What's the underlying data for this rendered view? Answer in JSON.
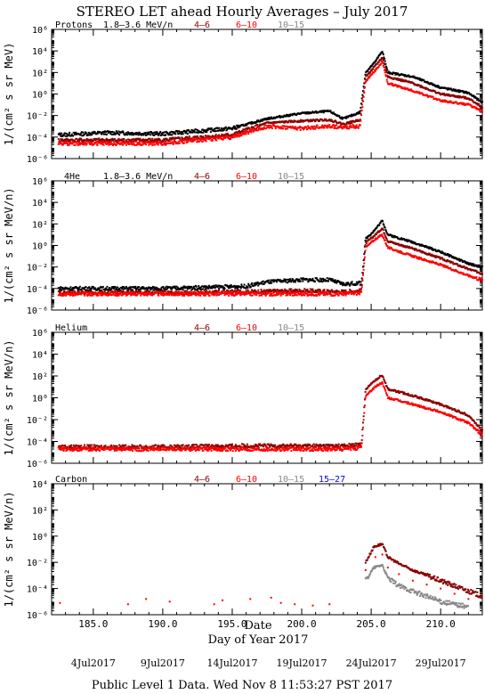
{
  "title": "STEREO LET ahead Hourly Averages – July 2017",
  "x_axis_label": "Day of Year 2017",
  "date_label": "Date",
  "footer": "Public Level 1 Data. Wed Nov  8 11:53:27 PST 2017",
  "x_ticks": [
    "185.0",
    "190.0",
    "195.0",
    "200.0",
    "205.0",
    "210.0"
  ],
  "date_ticks": [
    "4Jul2017",
    "9Jul2017",
    "14Jul2017",
    "19Jul2017",
    "24Jul2017",
    "29Jul2017"
  ],
  "colors": {
    "black": "#000000",
    "darkred": "#8b0000",
    "red": "#ff0000",
    "gray": "#888888",
    "blue": "#0000ff"
  },
  "chart_data": [
    {
      "type": "scatter",
      "species": "Protons",
      "ylabel": "1/(cm² s sr MeV)",
      "yscale": "log",
      "ylim_exp": [
        -6,
        6
      ],
      "y_ticks": [
        "10⁻⁶",
        "10⁻⁴",
        "10⁻²",
        "10⁰",
        "10²",
        "10⁴",
        "10⁶"
      ],
      "xlim": [
        182.0,
        213.0
      ],
      "legend": [
        {
          "label": "1.8–3.6 MeV/n",
          "color": "#000000"
        },
        {
          "label": "4–6",
          "color": "#8b0000"
        },
        {
          "label": "6–10",
          "color": "#ff0000"
        },
        {
          "label": "10–15",
          "color": "#888888"
        }
      ],
      "series": [
        {
          "name": "1.8–3.6 MeV/n",
          "color": "#000000",
          "points": [
            [
              182.5,
              -3.8
            ],
            [
              186,
              -3.6
            ],
            [
              190,
              -3.7
            ],
            [
              195,
              -3.2
            ],
            [
              197.5,
              -2.3
            ],
            [
              198,
              -2.2
            ],
            [
              200,
              -1.8
            ],
            [
              202,
              -1.6
            ],
            [
              203,
              -2.3
            ],
            [
              204.2,
              -1.7
            ],
            [
              204.6,
              2.0
            ],
            [
              205.3,
              3.0
            ],
            [
              205.8,
              4.0
            ],
            [
              206.2,
              2.0
            ],
            [
              208,
              1.6
            ],
            [
              210,
              0.6
            ],
            [
              212,
              0.1
            ],
            [
              213,
              -0.8
            ]
          ]
        },
        {
          "name": "4–6",
          "color": "#8b0000",
          "points": [
            [
              182.5,
              -4.3
            ],
            [
              190,
              -4.3
            ],
            [
              195,
              -3.8
            ],
            [
              197.5,
              -2.7
            ],
            [
              200,
              -2.5
            ],
            [
              202,
              -2.4
            ],
            [
              203,
              -2.8
            ],
            [
              204.2,
              -2.4
            ],
            [
              204.6,
              1.6
            ],
            [
              205.3,
              2.6
            ],
            [
              205.8,
              3.4
            ],
            [
              206.2,
              1.6
            ],
            [
              208,
              1.0
            ],
            [
              210,
              0.0
            ],
            [
              212,
              -0.4
            ],
            [
              213,
              -1.2
            ]
          ]
        },
        {
          "name": "6–10",
          "color": "#ff0000",
          "points": [
            [
              182.5,
              -4.6
            ],
            [
              190,
              -4.6
            ],
            [
              195,
              -4.0
            ],
            [
              197.5,
              -3.0
            ],
            [
              200,
              -3.2
            ],
            [
              202,
              -3.0
            ],
            [
              203,
              -3.1
            ],
            [
              204.2,
              -3.0
            ],
            [
              204.6,
              1.2
            ],
            [
              205.3,
              2.2
            ],
            [
              205.8,
              3.0
            ],
            [
              206.2,
              1.0
            ],
            [
              208,
              0.3
            ],
            [
              210,
              -0.6
            ],
            [
              212,
              -1.0
            ],
            [
              213,
              -1.6
            ]
          ]
        }
      ]
    },
    {
      "type": "scatter",
      "species": "4He",
      "ylabel": "1/(cm² s sr MeV/n)",
      "yscale": "log",
      "ylim_exp": [
        -6,
        6
      ],
      "y_ticks": [
        "10⁻⁶",
        "10⁻⁴",
        "10⁻²",
        "10⁰",
        "10²",
        "10⁴",
        "10⁶"
      ],
      "xlim": [
        182.0,
        213.0
      ],
      "legend": [
        {
          "label": "1.8–3.6 MeV/n",
          "color": "#000000"
        },
        {
          "label": "4–6",
          "color": "#8b0000"
        },
        {
          "label": "6–10",
          "color": "#ff0000"
        },
        {
          "label": "10–15",
          "color": "#888888"
        }
      ],
      "series": [
        {
          "name": "1.8–3.6 MeV/n",
          "color": "#000000",
          "points": [
            [
              182.5,
              -4.0
            ],
            [
              190,
              -4.0
            ],
            [
              196,
              -3.8
            ],
            [
              197.5,
              -3.4
            ],
            [
              200,
              -3.2
            ],
            [
              202,
              -3.2
            ],
            [
              203,
              -3.6
            ],
            [
              204.3,
              -3.5
            ],
            [
              204.6,
              0.6
            ],
            [
              205.3,
              1.5
            ],
            [
              205.8,
              2.3
            ],
            [
              206.2,
              1.0
            ],
            [
              208,
              0.3
            ],
            [
              210,
              -0.6
            ],
            [
              212,
              -1.7
            ],
            [
              213,
              -2.0
            ]
          ]
        },
        {
          "name": "4–6",
          "color": "#8b0000",
          "points": [
            [
              182.5,
              -4.4
            ],
            [
              190,
              -4.4
            ],
            [
              196,
              -4.3
            ],
            [
              200,
              -4.2
            ],
            [
              203,
              -4.3
            ],
            [
              204.3,
              -4.2
            ],
            [
              204.6,
              0.2
            ],
            [
              205.3,
              1.0
            ],
            [
              205.8,
              1.6
            ],
            [
              206.2,
              0.4
            ],
            [
              208,
              -0.3
            ],
            [
              210,
              -1.2
            ],
            [
              212,
              -2.2
            ],
            [
              213,
              -2.6
            ]
          ]
        },
        {
          "name": "6–10",
          "color": "#ff0000",
          "points": [
            [
              182.5,
              -4.5
            ],
            [
              190,
              -4.5
            ],
            [
              196,
              -4.5
            ],
            [
              200,
              -4.5
            ],
            [
              203,
              -4.5
            ],
            [
              204.3,
              -4.4
            ],
            [
              204.6,
              -0.2
            ],
            [
              205.3,
              0.6
            ],
            [
              205.8,
              1.0
            ],
            [
              206.2,
              -0.2
            ],
            [
              208,
              -1.0
            ],
            [
              210,
              -1.8
            ],
            [
              212,
              -2.8
            ],
            [
              213,
              -3.2
            ]
          ]
        }
      ]
    },
    {
      "type": "scatter",
      "species": "Helium",
      "ylabel": "1/(cm² s sr MeV/n)",
      "yscale": "log",
      "ylim_exp": [
        -6,
        6
      ],
      "y_ticks": [
        "10⁻⁶",
        "10⁻⁴",
        "10⁻²",
        "10⁰",
        "10²",
        "10⁴",
        "10⁶"
      ],
      "xlim": [
        182.0,
        213.0
      ],
      "legend": [
        {
          "label": "4–6",
          "color": "#8b0000"
        },
        {
          "label": "6–10",
          "color": "#ff0000"
        },
        {
          "label": "10–15",
          "color": "#888888"
        }
      ],
      "series": [
        {
          "name": "4–6",
          "color": "#8b0000",
          "points": [
            [
              182.5,
              -4.5
            ],
            [
              190,
              -4.5
            ],
            [
              196,
              -4.4
            ],
            [
              200,
              -4.4
            ],
            [
              203,
              -4.4
            ],
            [
              204.3,
              -4.3
            ],
            [
              204.6,
              0.8
            ],
            [
              205.3,
              1.6
            ],
            [
              205.8,
              2.1
            ],
            [
              206.2,
              0.8
            ],
            [
              208,
              0.2
            ],
            [
              210,
              -0.6
            ],
            [
              212,
              -1.6
            ],
            [
              213,
              -3.0
            ]
          ]
        },
        {
          "name": "6–10",
          "color": "#ff0000",
          "points": [
            [
              182.5,
              -4.7
            ],
            [
              190,
              -4.7
            ],
            [
              196,
              -4.7
            ],
            [
              200,
              -4.7
            ],
            [
              203,
              -4.7
            ],
            [
              204.3,
              -4.6
            ],
            [
              204.6,
              0.2
            ],
            [
              205.3,
              1.0
            ],
            [
              205.8,
              1.4
            ],
            [
              206.2,
              0.0
            ],
            [
              208,
              -0.6
            ],
            [
              210,
              -1.3
            ],
            [
              212,
              -2.3
            ],
            [
              213,
              -3.4
            ]
          ]
        }
      ]
    },
    {
      "type": "scatter",
      "species": "Carbon",
      "ylabel": "1/(cm² s sr MeV/n)",
      "yscale": "log",
      "ylim_exp": [
        -6,
        4
      ],
      "y_ticks": [
        "10⁻⁶",
        "10⁻⁴",
        "10⁻²",
        "10⁰",
        "10²",
        "10⁴"
      ],
      "xlim": [
        182.0,
        213.0
      ],
      "legend": [
        {
          "label": "4–6",
          "color": "#8b0000"
        },
        {
          "label": "6–10",
          "color": "#ff0000"
        },
        {
          "label": "10–15",
          "color": "#888888"
        },
        {
          "label": "15–27",
          "color": "#0000ff"
        }
      ],
      "series": [
        {
          "name": "4–6",
          "color": "#8b0000",
          "points": [
            [
              204.6,
              -2.0
            ],
            [
              205.2,
              -0.8
            ],
            [
              205.8,
              -0.6
            ],
            [
              206.2,
              -1.6
            ],
            [
              207,
              -2.1
            ],
            [
              208,
              -2.6
            ],
            [
              209,
              -3.0
            ],
            [
              210,
              -3.4
            ],
            [
              211,
              -3.8
            ],
            [
              212,
              -4.2
            ],
            [
              213,
              -4.6
            ]
          ]
        },
        {
          "name": "6–10",
          "color": "#ff0000",
          "points": [
            [
              182.6,
              -5.1
            ],
            [
              187.5,
              -5.2
            ],
            [
              188.8,
              -4.8
            ],
            [
              190.5,
              -5.0
            ],
            [
              193.7,
              -5.2
            ],
            [
              194.3,
              -4.9
            ],
            [
              196.3,
              -4.8
            ],
            [
              197.8,
              -4.7
            ],
            [
              198.5,
              -5.1
            ],
            [
              199.5,
              -5.2
            ],
            [
              200.8,
              -5.3
            ],
            [
              202,
              -5.2
            ],
            [
              204.6,
              -2.6
            ],
            [
              205.3,
              -1.6
            ],
            [
              205.8,
              -1.4
            ],
            [
              206.2,
              -2.4
            ],
            [
              207,
              -2.9
            ],
            [
              208,
              -3.4
            ],
            [
              209,
              -3.7
            ],
            [
              210,
              -4.0
            ],
            [
              211,
              -4.4
            ],
            [
              212,
              -4.8
            ]
          ]
        },
        {
          "name": "10–15",
          "color": "#888888",
          "points": [
            [
              204.6,
              -3.4
            ],
            [
              205.2,
              -2.4
            ],
            [
              205.8,
              -2.2
            ],
            [
              206.2,
              -3.2
            ],
            [
              207,
              -3.8
            ],
            [
              208,
              -4.2
            ],
            [
              209,
              -4.6
            ],
            [
              210,
              -5.0
            ],
            [
              211,
              -5.2
            ],
            [
              212,
              -5.4
            ]
          ]
        }
      ]
    }
  ]
}
